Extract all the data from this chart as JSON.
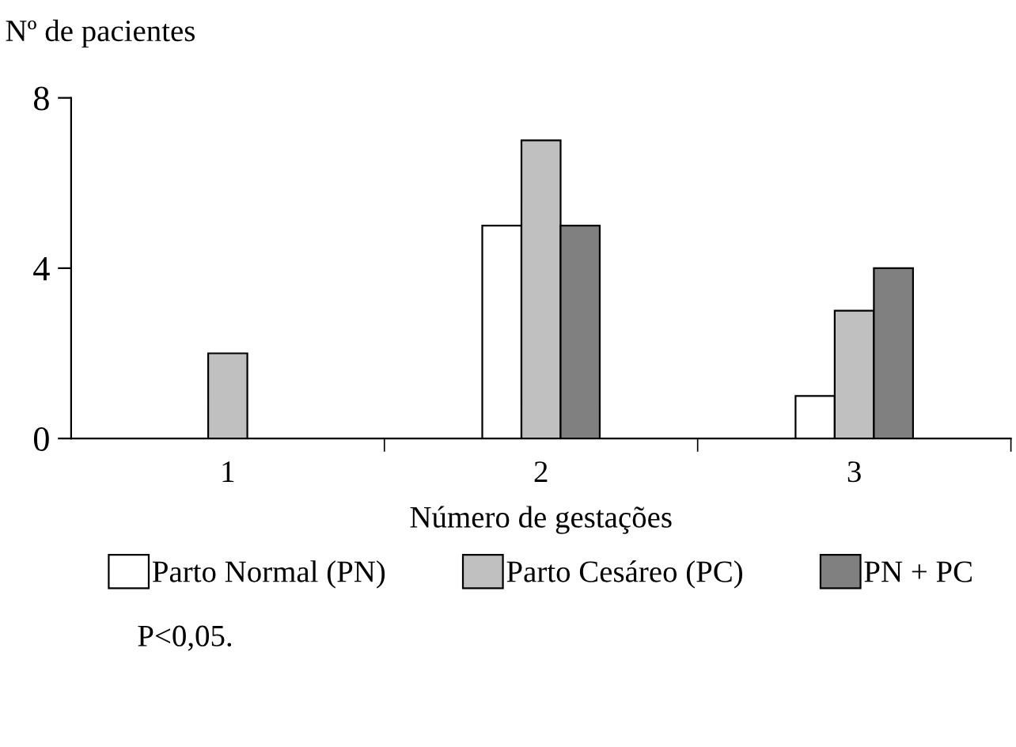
{
  "chart_data": {
    "type": "bar",
    "ylabel": "Nº de pacientes",
    "xlabel": "Número de gestações",
    "categories": [
      "1",
      "2",
      "3"
    ],
    "series": [
      {
        "name": "Parto Normal (PN)",
        "color": "#ffffff",
        "values": [
          null,
          5,
          1
        ]
      },
      {
        "name": "Parto Cesáreo (PC)",
        "color": "#c0c0c0",
        "values": [
          2,
          7,
          3
        ]
      },
      {
        "name": "PN + PC",
        "color": "#808080",
        "values": [
          null,
          5,
          4
        ]
      }
    ],
    "ylim": [
      0,
      8
    ],
    "yticks": [
      0,
      4,
      8
    ],
    "grid": false,
    "legend": "bottom",
    "annotations": [
      "P<0,05."
    ]
  }
}
